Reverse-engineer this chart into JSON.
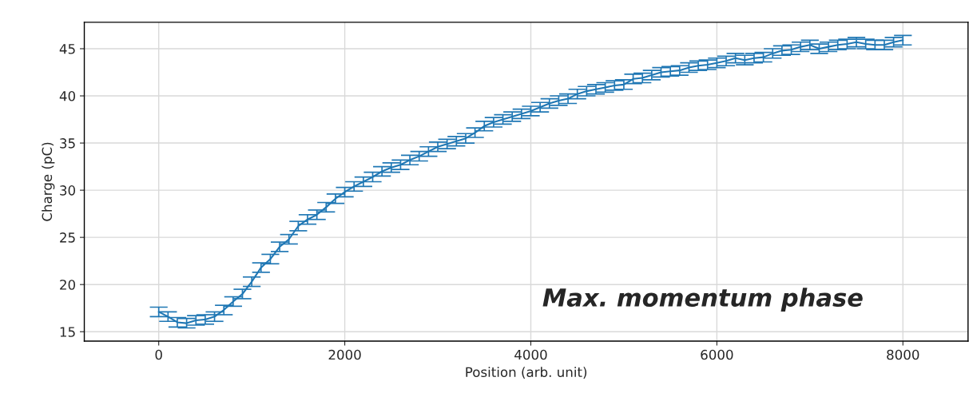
{
  "chart_data": {
    "type": "line",
    "xlabel": "Position (arb. unit)",
    "ylabel": "Charge (pC)",
    "annotations": [
      "Max. momentum phase"
    ],
    "x": [
      0,
      100,
      200,
      300,
      400,
      500,
      600,
      700,
      800,
      900,
      1000,
      1100,
      1200,
      1300,
      1400,
      1500,
      1600,
      1700,
      1800,
      1900,
      2000,
      2100,
      2200,
      2300,
      2400,
      2500,
      2600,
      2700,
      2800,
      2900,
      3000,
      3100,
      3200,
      3300,
      3400,
      3500,
      3600,
      3700,
      3800,
      3900,
      4000,
      4100,
      4200,
      4300,
      4400,
      4500,
      4600,
      4700,
      4800,
      4900,
      5000,
      5100,
      5200,
      5300,
      5400,
      5500,
      5600,
      5700,
      5800,
      5900,
      6000,
      6100,
      6200,
      6300,
      6400,
      6500,
      6600,
      6700,
      6800,
      6900,
      7000,
      7100,
      7200,
      7300,
      7400,
      7500,
      7600,
      7700,
      7800,
      7900,
      8000
    ],
    "series": [
      {
        "color": "#1f77b4",
        "values": [
          17.1,
          16.6,
          16.0,
          15.9,
          16.2,
          16.3,
          16.6,
          17.3,
          18.2,
          19.0,
          20.3,
          21.8,
          22.7,
          24.0,
          24.8,
          26.2,
          26.9,
          27.4,
          28.2,
          29.1,
          29.8,
          30.4,
          30.9,
          31.4,
          32.0,
          32.4,
          32.7,
          33.2,
          33.6,
          34.1,
          34.6,
          34.9,
          35.2,
          35.5,
          36.1,
          36.8,
          37.2,
          37.5,
          37.8,
          38.1,
          38.4,
          38.8,
          39.2,
          39.5,
          39.7,
          40.2,
          40.5,
          40.7,
          40.9,
          41.1,
          41.2,
          41.8,
          41.9,
          42.2,
          42.5,
          42.6,
          42.7,
          43.0,
          43.2,
          43.3,
          43.5,
          43.7,
          44.0,
          43.8,
          44.0,
          44.1,
          44.5,
          44.8,
          44.9,
          45.2,
          45.4,
          45.0,
          45.2,
          45.4,
          45.5,
          45.7,
          45.5,
          45.4,
          45.4,
          45.7,
          45.9
        ],
        "errors": [
          0.5,
          0.5,
          0.5,
          0.5,
          0.5,
          0.5,
          0.5,
          0.5,
          0.5,
          0.5,
          0.5,
          0.5,
          0.5,
          0.5,
          0.5,
          0.5,
          0.5,
          0.5,
          0.5,
          0.5,
          0.5,
          0.5,
          0.5,
          0.5,
          0.5,
          0.5,
          0.5,
          0.5,
          0.5,
          0.5,
          0.5,
          0.5,
          0.5,
          0.5,
          0.5,
          0.5,
          0.5,
          0.5,
          0.5,
          0.5,
          0.5,
          0.5,
          0.5,
          0.5,
          0.5,
          0.5,
          0.5,
          0.5,
          0.5,
          0.5,
          0.5,
          0.5,
          0.5,
          0.5,
          0.5,
          0.5,
          0.5,
          0.5,
          0.5,
          0.5,
          0.5,
          0.5,
          0.5,
          0.5,
          0.5,
          0.5,
          0.5,
          0.5,
          0.5,
          0.5,
          0.5,
          0.5,
          0.5,
          0.5,
          0.5,
          0.5,
          0.5,
          0.5,
          0.5,
          0.5,
          0.5
        ]
      }
    ],
    "xlim": [
      -800,
      8700
    ],
    "ylim": [
      14,
      47.8
    ],
    "xticks": [
      0,
      2000,
      4000,
      6000,
      8000
    ],
    "yticks": [
      15,
      20,
      25,
      30,
      35,
      40,
      45
    ],
    "grid": true,
    "marker": "none",
    "line_style": "solid"
  }
}
